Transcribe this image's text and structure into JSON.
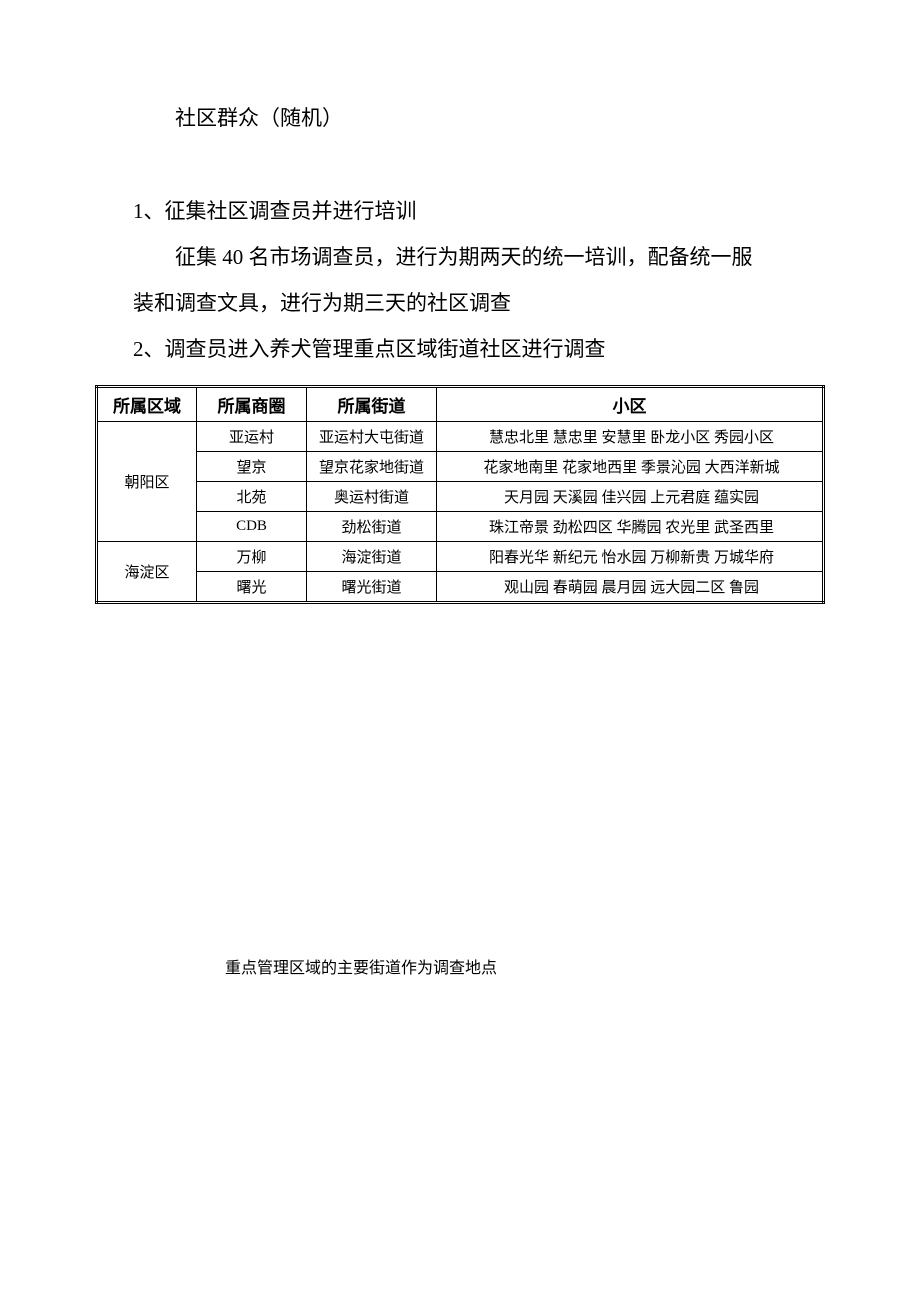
{
  "intro_text": "社区群众（随机）",
  "section1": {
    "number": "1、",
    "title": "征集社区调查员并进行培训",
    "body1": "征集 40 名市场调查员，进行为期两天的统一培训，配备统一服",
    "body2": "装和调查文具，进行为期三天的社区调查"
  },
  "section2": {
    "number": "2、",
    "title": "调查员进入养犬管理重点区域街道社区进行调查"
  },
  "table": {
    "headers": {
      "region": "所属区域",
      "circle": "所属商圈",
      "street": "所属街道",
      "community": "小区"
    },
    "regions": [
      {
        "name": "朝阳区",
        "rowspan": 4,
        "rows": [
          {
            "circle": "亚运村",
            "street": "亚运村大屯街道",
            "communities": "慧忠北里  慧忠里  安慧里  卧龙小区  秀园小区"
          },
          {
            "circle": "望京",
            "street": "望京花家地街道",
            "communities": "花家地南里  花家地西里  季景沁园  大西洋新城"
          },
          {
            "circle": "北苑",
            "street": "奥运村街道",
            "communities": "天月园  天溪园  佳兴园  上元君庭  蕴实园"
          },
          {
            "circle": "CDB",
            "street": "劲松街道",
            "communities": "珠江帝景  劲松四区  华腾园  农光里  武圣西里"
          }
        ]
      },
      {
        "name": "海淀区",
        "rowspan": 2,
        "rows": [
          {
            "circle": "万柳",
            "street": "海淀街道",
            "communities": "阳春光华  新纪元  怡水园  万柳新贵  万城华府"
          },
          {
            "circle": "曙光",
            "street": "曙光街道",
            "communities": "观山园  春萌园  晨月园  远大园二区  鲁园"
          }
        ]
      }
    ]
  },
  "footnote": "重点管理区域的主要街道作为调查地点"
}
